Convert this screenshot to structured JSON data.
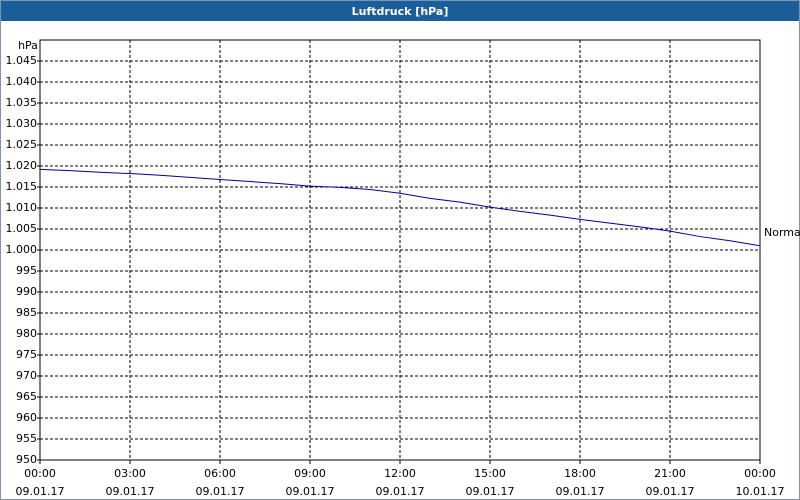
{
  "chart_data": {
    "type": "line",
    "title": "Luftdruck [hPa]",
    "y_label": "hPa",
    "x": [
      0,
      1,
      2,
      3,
      4,
      5,
      6,
      7,
      8,
      9,
      10,
      11,
      12,
      13,
      14,
      15,
      16,
      17,
      18,
      19,
      20,
      21,
      22,
      23,
      24
    ],
    "series": [
      {
        "name": "Normal",
        "color": "#000099",
        "values": [
          1019.2,
          1018.9,
          1018.5,
          1018.2,
          1017.8,
          1017.3,
          1016.8,
          1016.3,
          1015.8,
          1015.2,
          1014.9,
          1014.4,
          1013.5,
          1012.3,
          1011.4,
          1010.2,
          1009.2,
          1008.3,
          1007.3,
          1006.4,
          1005.5,
          1004.5,
          1003.2,
          1002.2,
          1001.0
        ]
      }
    ],
    "xlim": [
      0,
      24
    ],
    "xticks": [
      {
        "value": 0,
        "label": "00:00 09.01.17"
      },
      {
        "value": 3,
        "label": "03:00 09.01.17"
      },
      {
        "value": 6,
        "label": "06:00 09.01.17"
      },
      {
        "value": 9,
        "label": "09:00 09.01.17"
      },
      {
        "value": 12,
        "label": "12:00 09.01.17"
      },
      {
        "value": 15,
        "label": "15:00 09.01.17"
      },
      {
        "value": 18,
        "label": "18:00 09.01.17"
      },
      {
        "value": 21,
        "label": "21:00 09.01.17"
      },
      {
        "value": 24,
        "label": "00:00 10.01.17"
      }
    ],
    "ylim": [
      950,
      1050
    ],
    "yticks": [
      950,
      955,
      960,
      965,
      970,
      975,
      980,
      985,
      990,
      995,
      {
        "value": 1000,
        "label": "1.000"
      },
      {
        "value": 1005,
        "label": "1.005"
      },
      {
        "value": 1010,
        "label": "1.010"
      },
      {
        "value": 1015,
        "label": "1.015"
      },
      {
        "value": 1020,
        "label": "1.020"
      },
      {
        "value": 1025,
        "label": "1.025"
      },
      {
        "value": 1030,
        "label": "1.030"
      },
      {
        "value": 1035,
        "label": "1.035"
      },
      {
        "value": 1040,
        "label": "1.040"
      },
      {
        "value": 1045,
        "label": "1.045"
      }
    ],
    "grid": true
  }
}
